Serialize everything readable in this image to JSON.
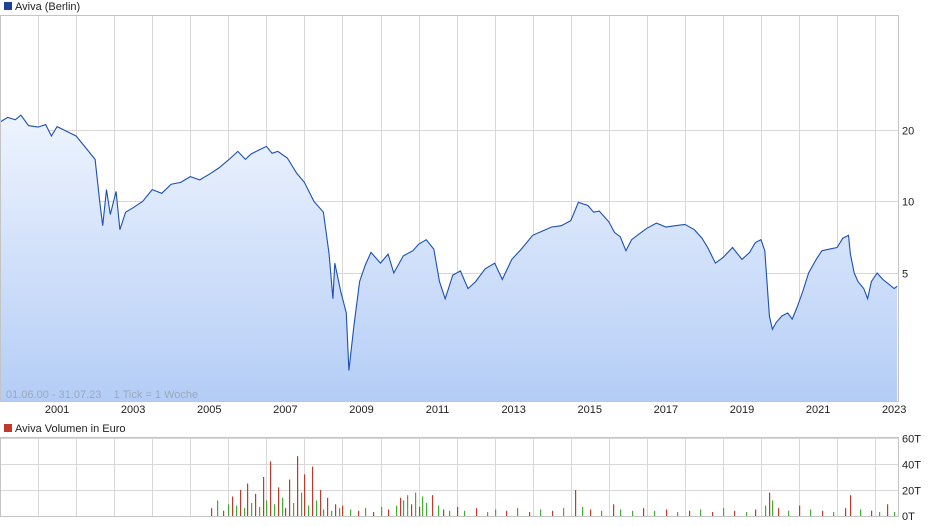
{
  "colors": {
    "price_line": "#1c4fb8",
    "area_top": "#eef4fe",
    "area_bottom": "#b4cdf6",
    "vol_up": "#3fae32",
    "vol_down": "#c0392b",
    "grid": "#d8d8d8"
  },
  "price_legend": {
    "label": "Aviva (Berlin)",
    "color": "#1f3f99"
  },
  "volume_legend": {
    "label": "Aviva Volumen in Euro",
    "color": "#c0392b"
  },
  "range_note": "01.06.00 - 31.07.23    1 Tick = 1 Woche",
  "chart_data": [
    {
      "type": "area",
      "series": [
        {
          "name": "Aviva (Berlin)"
        }
      ],
      "y_scale": "log",
      "ylim": [
        1.45,
        60
      ],
      "xlim": [
        2000.0,
        2023.6
      ],
      "y_ticks": [
        5,
        10,
        20
      ],
      "y_tick_labels": [
        "5",
        "10",
        "20"
      ],
      "x_tick_years": [
        2001,
        2003,
        2005,
        2007,
        2009,
        2011,
        2013,
        2015,
        2017,
        2019,
        2021,
        2023
      ],
      "x_tick_labels": [
        "2001",
        "2003",
        "2005",
        "2007",
        "2009",
        "2011",
        "2013",
        "2015",
        "2017",
        "2019",
        "2021",
        "2023"
      ],
      "grid": true,
      "points": [
        [
          2000.0,
          21.5
        ],
        [
          2000.2,
          22.5
        ],
        [
          2000.4,
          22.0
        ],
        [
          2000.55,
          23.0
        ],
        [
          2000.75,
          20.8
        ],
        [
          2001.0,
          20.5
        ],
        [
          2001.2,
          21.0
        ],
        [
          2001.35,
          18.8
        ],
        [
          2001.5,
          20.6
        ],
        [
          2001.8,
          19.5
        ],
        [
          2002.0,
          18.8
        ],
        [
          2002.25,
          16.8
        ],
        [
          2002.5,
          15.0
        ],
        [
          2002.62,
          10.0
        ],
        [
          2002.7,
          7.9
        ],
        [
          2002.8,
          11.2
        ],
        [
          2002.9,
          8.8
        ],
        [
          2003.05,
          11.0
        ],
        [
          2003.15,
          7.6
        ],
        [
          2003.3,
          9.0
        ],
        [
          2003.5,
          9.4
        ],
        [
          2003.75,
          10.0
        ],
        [
          2004.0,
          11.2
        ],
        [
          2004.25,
          10.8
        ],
        [
          2004.5,
          11.8
        ],
        [
          2004.75,
          12.0
        ],
        [
          2005.0,
          12.7
        ],
        [
          2005.25,
          12.3
        ],
        [
          2005.5,
          13.0
        ],
        [
          2005.75,
          13.8
        ],
        [
          2006.0,
          14.9
        ],
        [
          2006.25,
          16.2
        ],
        [
          2006.45,
          15.0
        ],
        [
          2006.6,
          15.8
        ],
        [
          2006.8,
          16.4
        ],
        [
          2007.0,
          17.0
        ],
        [
          2007.15,
          15.9
        ],
        [
          2007.3,
          16.2
        ],
        [
          2007.55,
          15.2
        ],
        [
          2007.8,
          13.1
        ],
        [
          2008.0,
          12.0
        ],
        [
          2008.25,
          10.0
        ],
        [
          2008.5,
          9.0
        ],
        [
          2008.65,
          6.0
        ],
        [
          2008.75,
          3.9
        ],
        [
          2008.8,
          5.5
        ],
        [
          2008.95,
          4.2
        ],
        [
          2009.1,
          3.4
        ],
        [
          2009.17,
          1.95
        ],
        [
          2009.3,
          3.0
        ],
        [
          2009.45,
          4.6
        ],
        [
          2009.6,
          5.4
        ],
        [
          2009.75,
          6.1
        ],
        [
          2010.0,
          5.5
        ],
        [
          2010.2,
          6.0
        ],
        [
          2010.35,
          5.0
        ],
        [
          2010.6,
          5.9
        ],
        [
          2010.85,
          6.2
        ],
        [
          2011.0,
          6.6
        ],
        [
          2011.2,
          6.9
        ],
        [
          2011.4,
          6.3
        ],
        [
          2011.55,
          4.6
        ],
        [
          2011.7,
          3.9
        ],
        [
          2011.9,
          4.9
        ],
        [
          2012.1,
          5.1
        ],
        [
          2012.3,
          4.3
        ],
        [
          2012.5,
          4.6
        ],
        [
          2012.75,
          5.2
        ],
        [
          2013.0,
          5.5
        ],
        [
          2013.2,
          4.7
        ],
        [
          2013.45,
          5.7
        ],
        [
          2013.7,
          6.3
        ],
        [
          2014.0,
          7.2
        ],
        [
          2014.25,
          7.5
        ],
        [
          2014.5,
          7.8
        ],
        [
          2014.75,
          7.9
        ],
        [
          2015.0,
          8.3
        ],
        [
          2015.2,
          9.9
        ],
        [
          2015.45,
          9.6
        ],
        [
          2015.6,
          9.0
        ],
        [
          2015.75,
          9.1
        ],
        [
          2016.0,
          8.2
        ],
        [
          2016.15,
          7.4
        ],
        [
          2016.3,
          7.1
        ],
        [
          2016.45,
          6.2
        ],
        [
          2016.6,
          6.9
        ],
        [
          2016.8,
          7.3
        ],
        [
          2017.0,
          7.7
        ],
        [
          2017.25,
          8.1
        ],
        [
          2017.5,
          7.8
        ],
        [
          2017.75,
          7.9
        ],
        [
          2018.0,
          8.0
        ],
        [
          2018.25,
          7.6
        ],
        [
          2018.45,
          7.0
        ],
        [
          2018.6,
          6.4
        ],
        [
          2018.8,
          5.5
        ],
        [
          2019.0,
          5.8
        ],
        [
          2019.25,
          6.4
        ],
        [
          2019.5,
          5.7
        ],
        [
          2019.7,
          6.1
        ],
        [
          2019.85,
          6.7
        ],
        [
          2020.0,
          6.9
        ],
        [
          2020.1,
          6.2
        ],
        [
          2020.22,
          3.3
        ],
        [
          2020.3,
          2.9
        ],
        [
          2020.4,
          3.1
        ],
        [
          2020.55,
          3.3
        ],
        [
          2020.7,
          3.4
        ],
        [
          2020.82,
          3.2
        ],
        [
          2020.95,
          3.6
        ],
        [
          2021.1,
          4.2
        ],
        [
          2021.25,
          5.0
        ],
        [
          2021.45,
          5.7
        ],
        [
          2021.6,
          6.2
        ],
        [
          2021.8,
          6.3
        ],
        [
          2022.0,
          6.4
        ],
        [
          2022.15,
          7.0
        ],
        [
          2022.3,
          7.2
        ],
        [
          2022.35,
          6.0
        ],
        [
          2022.45,
          5.0
        ],
        [
          2022.55,
          4.6
        ],
        [
          2022.7,
          4.3
        ],
        [
          2022.8,
          3.9
        ],
        [
          2022.9,
          4.6
        ],
        [
          2023.05,
          5.0
        ],
        [
          2023.2,
          4.7
        ],
        [
          2023.35,
          4.5
        ],
        [
          2023.5,
          4.3
        ],
        [
          2023.58,
          4.4
        ]
      ]
    },
    {
      "type": "bar",
      "series": [
        {
          "name": "Aviva Volumen in Euro"
        }
      ],
      "ylim": [
        0,
        60
      ],
      "y_ticks": [
        0,
        20,
        40,
        60
      ],
      "y_tick_labels": [
        "0T",
        "20T",
        "40T",
        "60T"
      ],
      "grid": true,
      "bars": [
        [
          2005.55,
          6,
          "down"
        ],
        [
          2005.7,
          12,
          "up"
        ],
        [
          2005.85,
          4,
          "down"
        ],
        [
          2006.0,
          9,
          "up"
        ],
        [
          2006.1,
          15,
          "down"
        ],
        [
          2006.2,
          8,
          "up"
        ],
        [
          2006.3,
          20,
          "down"
        ],
        [
          2006.4,
          6,
          "up"
        ],
        [
          2006.5,
          25,
          "down"
        ],
        [
          2006.6,
          10,
          "up"
        ],
        [
          2006.7,
          17,
          "down"
        ],
        [
          2006.8,
          7,
          "up"
        ],
        [
          2006.9,
          30,
          "down"
        ],
        [
          2007.0,
          12,
          "up"
        ],
        [
          2007.1,
          42,
          "down"
        ],
        [
          2007.2,
          9,
          "up"
        ],
        [
          2007.3,
          22,
          "down"
        ],
        [
          2007.4,
          14,
          "up"
        ],
        [
          2007.5,
          6,
          "down"
        ],
        [
          2007.6,
          28,
          "down"
        ],
        [
          2007.7,
          10,
          "up"
        ],
        [
          2007.8,
          46,
          "down"
        ],
        [
          2007.9,
          18,
          "up"
        ],
        [
          2008.0,
          32,
          "down"
        ],
        [
          2008.1,
          8,
          "up"
        ],
        [
          2008.2,
          38,
          "down"
        ],
        [
          2008.3,
          12,
          "up"
        ],
        [
          2008.4,
          20,
          "down"
        ],
        [
          2008.5,
          5,
          "up"
        ],
        [
          2008.6,
          14,
          "down"
        ],
        [
          2008.7,
          4,
          "up"
        ],
        [
          2008.8,
          9,
          "down"
        ],
        [
          2008.9,
          6,
          "up"
        ],
        [
          2009.0,
          8,
          "down"
        ],
        [
          2009.2,
          5,
          "up"
        ],
        [
          2009.4,
          4,
          "down"
        ],
        [
          2009.6,
          6,
          "up"
        ],
        [
          2009.8,
          3,
          "down"
        ],
        [
          2010.0,
          7,
          "up"
        ],
        [
          2010.2,
          5,
          "down"
        ],
        [
          2010.4,
          8,
          "up"
        ],
        [
          2010.5,
          14,
          "down"
        ],
        [
          2010.6,
          12,
          "up"
        ],
        [
          2010.7,
          16,
          "up"
        ],
        [
          2010.8,
          9,
          "down"
        ],
        [
          2010.9,
          18,
          "up"
        ],
        [
          2011.0,
          7,
          "down"
        ],
        [
          2011.1,
          15,
          "up"
        ],
        [
          2011.2,
          10,
          "up"
        ],
        [
          2011.35,
          16,
          "down"
        ],
        [
          2011.5,
          8,
          "up"
        ],
        [
          2011.65,
          5,
          "down"
        ],
        [
          2011.8,
          4,
          "up"
        ],
        [
          2012.0,
          7,
          "down"
        ],
        [
          2012.2,
          4,
          "up"
        ],
        [
          2012.5,
          6,
          "down"
        ],
        [
          2012.8,
          3,
          "up"
        ],
        [
          2013.0,
          5,
          "up"
        ],
        [
          2013.3,
          4,
          "down"
        ],
        [
          2013.6,
          6,
          "up"
        ],
        [
          2013.9,
          3,
          "down"
        ],
        [
          2014.2,
          5,
          "up"
        ],
        [
          2014.5,
          4,
          "down"
        ],
        [
          2014.8,
          6,
          "up"
        ],
        [
          2015.1,
          20,
          "down"
        ],
        [
          2015.3,
          7,
          "up"
        ],
        [
          2015.5,
          5,
          "down"
        ],
        [
          2015.8,
          4,
          "up"
        ],
        [
          2016.1,
          9,
          "down"
        ],
        [
          2016.3,
          5,
          "up"
        ],
        [
          2016.6,
          4,
          "up"
        ],
        [
          2016.9,
          6,
          "down"
        ],
        [
          2017.2,
          4,
          "up"
        ],
        [
          2017.5,
          5,
          "down"
        ],
        [
          2017.8,
          3,
          "up"
        ],
        [
          2018.1,
          4,
          "down"
        ],
        [
          2018.4,
          5,
          "up"
        ],
        [
          2018.7,
          3,
          "down"
        ],
        [
          2019.0,
          6,
          "up"
        ],
        [
          2019.3,
          4,
          "down"
        ],
        [
          2019.6,
          3,
          "up"
        ],
        [
          2019.85,
          5,
          "down"
        ],
        [
          2020.1,
          8,
          "up"
        ],
        [
          2020.22,
          18,
          "down"
        ],
        [
          2020.3,
          12,
          "up"
        ],
        [
          2020.45,
          6,
          "down"
        ],
        [
          2020.7,
          4,
          "up"
        ],
        [
          2021.0,
          8,
          "down"
        ],
        [
          2021.3,
          5,
          "up"
        ],
        [
          2021.6,
          4,
          "down"
        ],
        [
          2021.9,
          3,
          "up"
        ],
        [
          2022.2,
          6,
          "down"
        ],
        [
          2022.35,
          16,
          "down"
        ],
        [
          2022.6,
          5,
          "up"
        ],
        [
          2022.9,
          4,
          "down"
        ],
        [
          2023.1,
          3,
          "up"
        ],
        [
          2023.3,
          9,
          "down"
        ],
        [
          2023.5,
          3,
          "up"
        ]
      ]
    }
  ]
}
